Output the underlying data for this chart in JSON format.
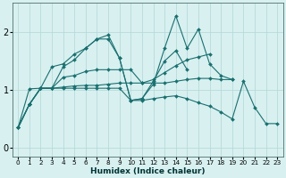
{
  "xlabel": "Humidex (Indice chaleur)",
  "bg_color": "#d8f0f0",
  "grid_color": "#b8dada",
  "line_color": "#1a7070",
  "xlim": [
    -0.5,
    23.5
  ],
  "ylim": [
    -0.15,
    2.5
  ],
  "xticks": [
    0,
    1,
    2,
    3,
    4,
    5,
    6,
    7,
    8,
    9,
    10,
    11,
    12,
    13,
    14,
    15,
    16,
    17,
    18,
    19,
    20,
    21,
    22,
    23
  ],
  "yticks": [
    0,
    1,
    2
  ],
  "series": [
    {
      "x": [
        0,
        1,
        2,
        3,
        4,
        5,
        6,
        7,
        8,
        9,
        10,
        11,
        12,
        13,
        14,
        15,
        16,
        17,
        18,
        19
      ],
      "y": [
        0.35,
        0.75,
        1.03,
        1.4,
        1.45,
        1.62,
        1.72,
        1.88,
        1.88,
        1.55,
        0.82,
        0.85,
        1.1,
        1.72,
        2.28,
        1.72,
        2.05,
        1.45,
        1.25,
        1.18
      ]
    },
    {
      "x": [
        0,
        1,
        2,
        3,
        4,
        5,
        6,
        7,
        8,
        9,
        10,
        11,
        12,
        13,
        14,
        15,
        16,
        17
      ],
      "y": [
        0.35,
        0.75,
        1.03,
        1.03,
        1.22,
        1.25,
        1.32,
        1.35,
        1.35,
        1.35,
        1.35,
        1.12,
        1.18,
        1.3,
        1.42,
        1.52,
        1.57,
        1.62
      ]
    },
    {
      "x": [
        0,
        1,
        2,
        3,
        4,
        5,
        6,
        7,
        8,
        9,
        10,
        11,
        12,
        13,
        14,
        15,
        16,
        17,
        18,
        19
      ],
      "y": [
        0.35,
        1.02,
        1.03,
        1.03,
        1.05,
        1.07,
        1.08,
        1.08,
        1.1,
        1.12,
        1.12,
        1.12,
        1.12,
        1.12,
        1.15,
        1.18,
        1.2,
        1.2,
        1.18,
        1.18
      ]
    },
    {
      "x": [
        0,
        1,
        2,
        3,
        4,
        5,
        6,
        7,
        8,
        9,
        10,
        11,
        12,
        13,
        14,
        15
      ],
      "y": [
        0.35,
        0.75,
        1.03,
        1.03,
        1.4,
        1.52,
        1.72,
        1.88,
        1.95,
        1.55,
        0.82,
        0.85,
        1.15,
        1.5,
        1.68,
        1.35
      ]
    },
    {
      "x": [
        0,
        1,
        2,
        3,
        4,
        5,
        6,
        7,
        8,
        9,
        10,
        11,
        12,
        13,
        14,
        15,
        16,
        17,
        18,
        19,
        20,
        21,
        22,
        23
      ],
      "y": [
        0.35,
        0.75,
        1.03,
        1.03,
        1.03,
        1.03,
        1.03,
        1.03,
        1.03,
        1.03,
        0.82,
        0.82,
        0.85,
        0.88,
        0.9,
        0.85,
        0.78,
        0.72,
        0.62,
        0.5,
        1.15,
        0.7,
        0.42,
        0.42
      ]
    }
  ]
}
